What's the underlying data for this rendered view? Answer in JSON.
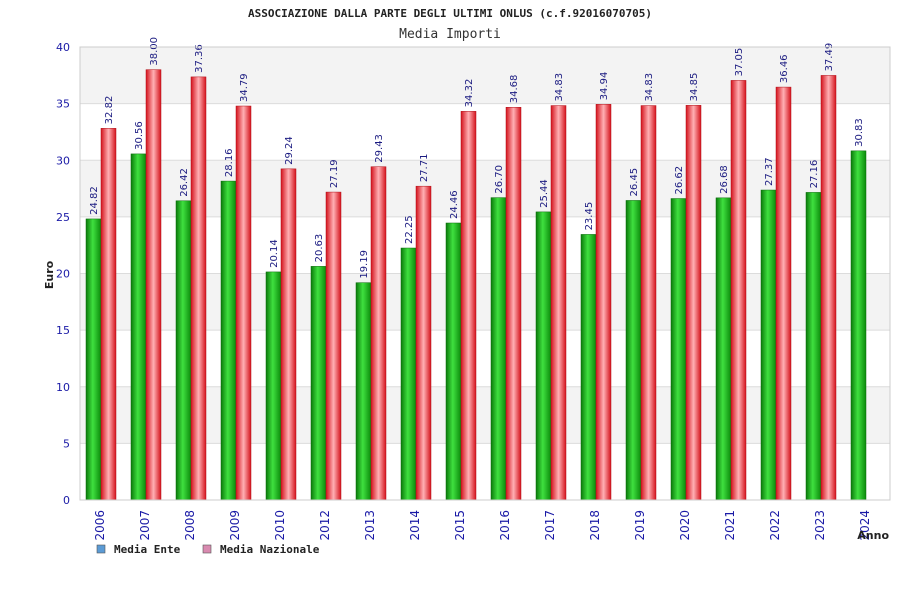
{
  "chart_data": {
    "type": "bar",
    "title": "ASSOCIAZIONE DALLA PARTE DEGLI ULTIMI ONLUS (c.f.92016070705)",
    "subtitle": "Media Importi",
    "xlabel": "Anno",
    "ylabel": "Euro",
    "ylim": [
      0,
      40
    ],
    "yticks": [
      "0",
      "5",
      "10",
      "15",
      "20",
      "25",
      "30",
      "35",
      "40"
    ],
    "grid": true,
    "legend_position": "bottom-left",
    "categories": [
      "2006",
      "2007",
      "2008",
      "2009",
      "2010",
      "2012",
      "2013",
      "2014",
      "2015",
      "2016",
      "2017",
      "2018",
      "2019",
      "2020",
      "2021",
      "2022",
      "2023",
      "2024"
    ],
    "series": [
      {
        "name": "Media Ente",
        "color": "#1fb51f",
        "legend_color": "#5b9bd5",
        "values": [
          24.82,
          30.56,
          26.42,
          28.16,
          20.14,
          20.63,
          19.19,
          22.25,
          24.46,
          26.7,
          25.44,
          23.45,
          26.45,
          26.62,
          26.68,
          27.37,
          27.16,
          30.83
        ],
        "labels": [
          "24.82",
          "30.56",
          "26.42",
          "28.16",
          "20.14",
          "20.63",
          "19.19",
          "22.25",
          "24.46",
          "26.70",
          "25.44",
          "23.45",
          "26.45",
          "26.62",
          "26.68",
          "27.37",
          "27.16",
          "30.83"
        ]
      },
      {
        "name": "Media Nazionale",
        "color": "#e8202a",
        "legend_color": "#d98ab0",
        "values": [
          32.82,
          38.0,
          37.36,
          34.79,
          29.24,
          27.19,
          29.43,
          27.71,
          34.32,
          34.68,
          34.83,
          34.94,
          34.83,
          34.85,
          37.05,
          36.46,
          37.49,
          null
        ],
        "labels": [
          "32.82",
          "38.00",
          "37.36",
          "34.79",
          "29.24",
          "27.19",
          "29.43",
          "27.71",
          "34.32",
          "34.68",
          "34.83",
          "34.94",
          "34.83",
          "34.85",
          "37.05",
          "36.46",
          "37.49",
          null
        ]
      }
    ]
  }
}
